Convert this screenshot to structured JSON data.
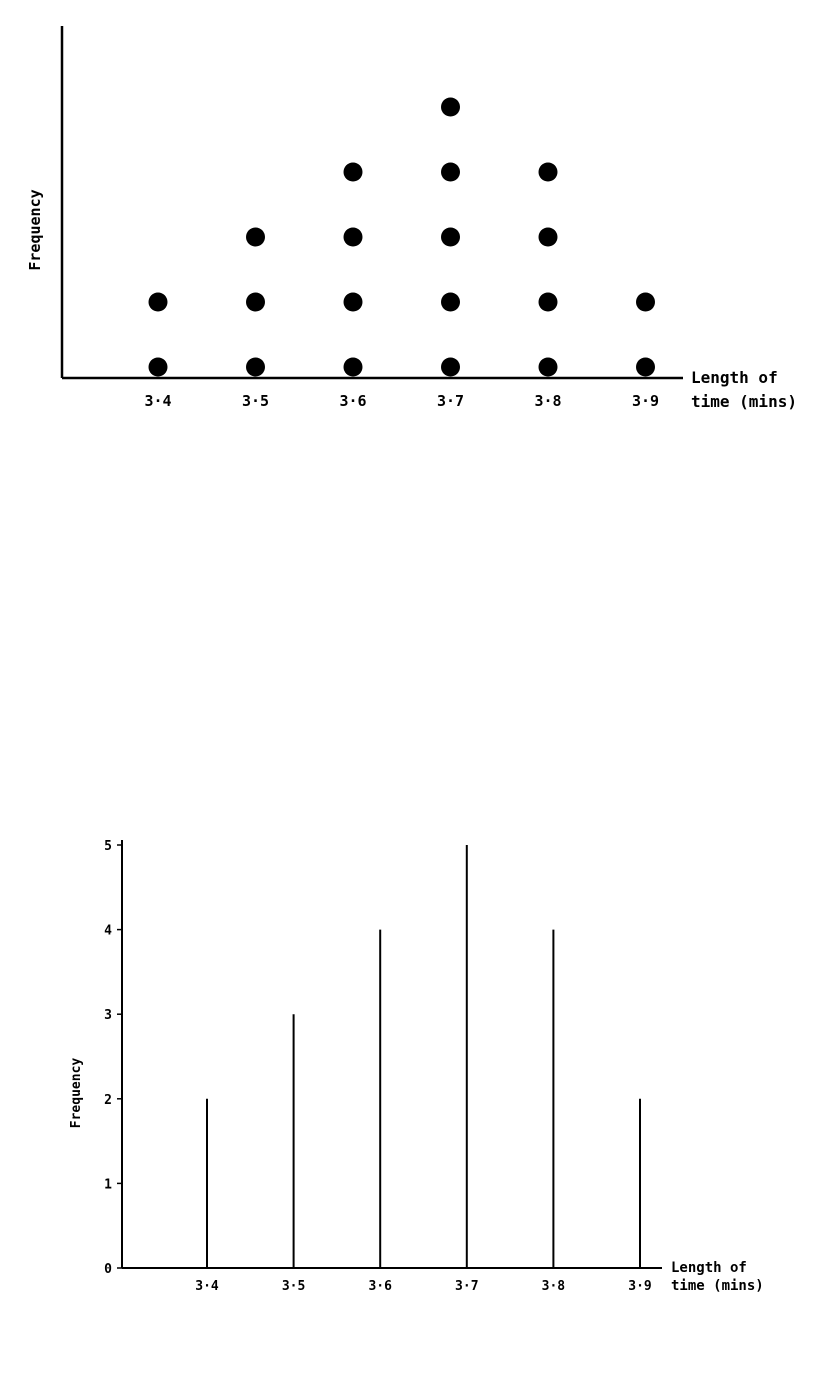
{
  "chart_data": [
    {
      "type": "scatter",
      "subtype": "dot plot",
      "xlabel": [
        "Length of",
        "time (mins)"
      ],
      "ylabel": "Frequency",
      "categories": [
        "3·4",
        "3·5",
        "3·6",
        "3·7",
        "3·8",
        "3·9"
      ],
      "values": [
        2,
        3,
        4,
        5,
        4,
        2
      ],
      "grid": false,
      "y_ticks_shown": false
    },
    {
      "type": "bar",
      "subtype": "vertical line graph",
      "xlabel": [
        "Length of",
        "time (mins)"
      ],
      "ylabel": "Frequency",
      "categories": [
        "3·4",
        "3·5",
        "3·6",
        "3·7",
        "3·8",
        "3·9"
      ],
      "values": [
        2,
        3,
        4,
        5,
        4,
        2
      ],
      "yticks": [
        "0",
        "1",
        "2",
        "3",
        "4",
        "5"
      ],
      "ylim": [
        0,
        5
      ],
      "grid": false
    }
  ]
}
